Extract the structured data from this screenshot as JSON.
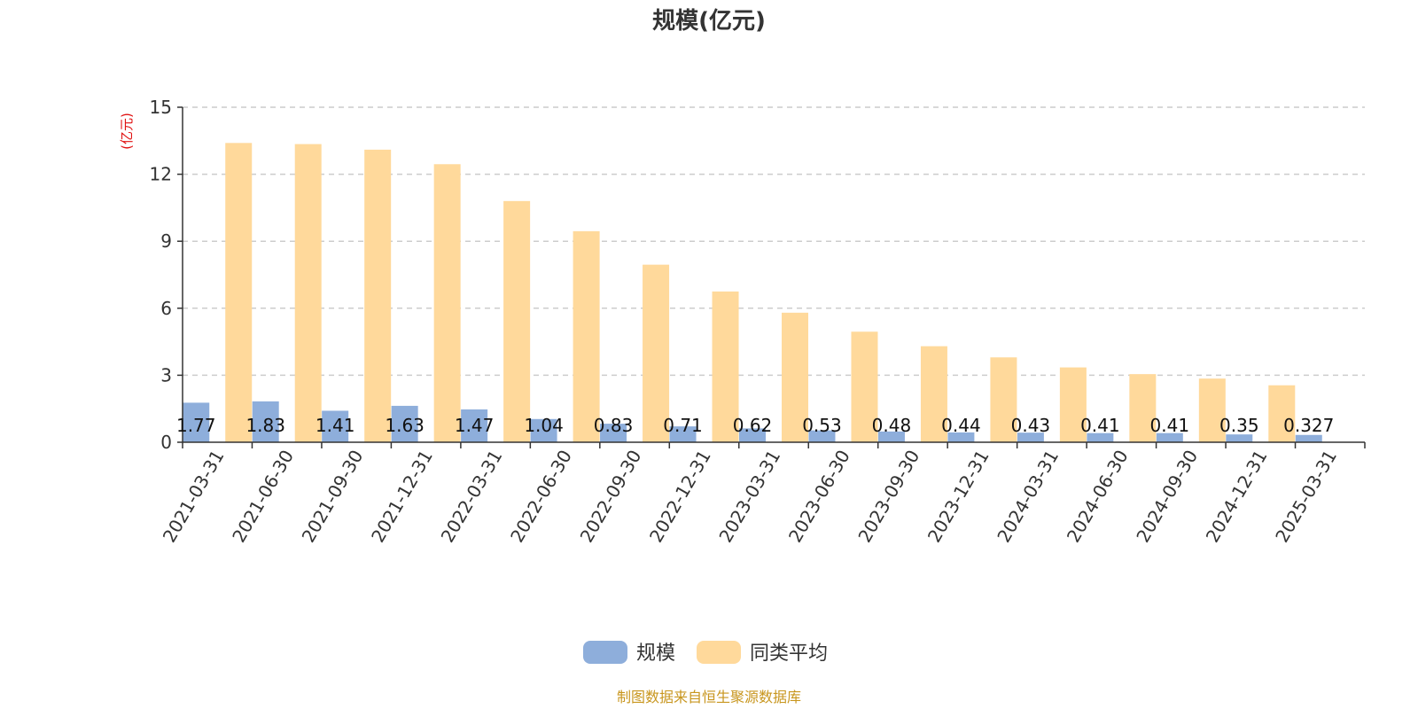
{
  "colors": {
    "series_scale": "#8eaedb",
    "series_avg": "#ffd99b",
    "axis": "#333333",
    "grid": "#cccccc",
    "unit": "#e01010",
    "source": "#c8961e"
  },
  "legend": {
    "placement": "bottom-center",
    "items": [
      "规模",
      "同类平均"
    ]
  },
  "source_note": "制图数据来自恒生聚源数据库",
  "chart_data": {
    "type": "bar",
    "title": "规模(亿元)",
    "ylabel": "(亿元)",
    "xlabel": "",
    "ylim": [
      0,
      15
    ],
    "yticks": [
      "0",
      "3",
      "6",
      "9",
      "12",
      "15"
    ],
    "grid": true,
    "categories": [
      "2021-03-31",
      "2021-06-30",
      "2021-09-30",
      "2021-12-31",
      "2022-03-31",
      "2022-06-30",
      "2022-09-30",
      "2022-12-31",
      "2023-03-31",
      "2023-06-30",
      "2023-09-30",
      "2023-12-31",
      "2024-03-31",
      "2024-06-30",
      "2024-09-30",
      "2024-12-31",
      "2025-03-31"
    ],
    "series": [
      {
        "name": "规模",
        "values": [
          1.77,
          1.83,
          1.41,
          1.63,
          1.47,
          1.04,
          0.83,
          0.71,
          0.62,
          0.53,
          0.48,
          0.44,
          0.43,
          0.41,
          0.41,
          0.35,
          0.327
        ],
        "labels": [
          "1.77",
          "1.83",
          "1.41",
          "1.63",
          "1.47",
          "1.04",
          "0.83",
          "0.71",
          "0.62",
          "0.53",
          "0.48",
          "0.44",
          "0.43",
          "0.41",
          "0.41",
          "0.35",
          "0.327"
        ]
      },
      {
        "name": "同类平均",
        "values": [
          13.4,
          13.35,
          13.1,
          12.45,
          10.8,
          9.45,
          7.95,
          6.75,
          5.8,
          4.95,
          4.3,
          3.8,
          3.35,
          3.05,
          2.85,
          2.55,
          null
        ]
      }
    ]
  }
}
